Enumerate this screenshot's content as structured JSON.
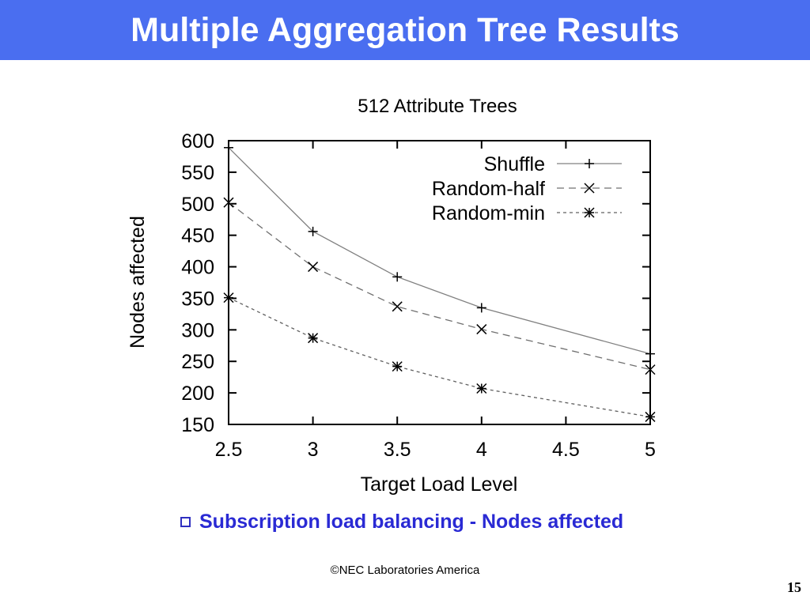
{
  "slide": {
    "title": "Multiple Aggregation Tree Results",
    "bullet": "Subscription load balancing - Nodes affected",
    "footer": "©NEC Laboratories America",
    "page_number": "15"
  },
  "chart_data": {
    "type": "line",
    "title": "512 Attribute Trees",
    "xlabel": "Target Load Level",
    "ylabel": "Nodes affected",
    "x": [
      2.5,
      3,
      3.5,
      4,
      5
    ],
    "xlim": [
      2.5,
      5
    ],
    "ylim": [
      150,
      600
    ],
    "xticks": [
      "2.5",
      "3",
      "3.5",
      "4",
      "4.5",
      "5"
    ],
    "yticks": [
      "150",
      "200",
      "250",
      "300",
      "350",
      "400",
      "450",
      "500",
      "550",
      "600"
    ],
    "legend_position": "top-right",
    "grid": false,
    "series": [
      {
        "name": "Shuffle",
        "values": [
          589,
          456,
          384,
          335,
          262
        ],
        "marker": "plus",
        "dash": "solid",
        "color": "#808080"
      },
      {
        "name": "Random-half",
        "values": [
          502,
          400,
          337,
          301,
          237
        ],
        "marker": "cross",
        "dash": "long",
        "color": "#707070"
      },
      {
        "name": "Random-min",
        "values": [
          351,
          287,
          242,
          207,
          162
        ],
        "marker": "star",
        "dash": "short",
        "color": "#606060"
      }
    ]
  }
}
